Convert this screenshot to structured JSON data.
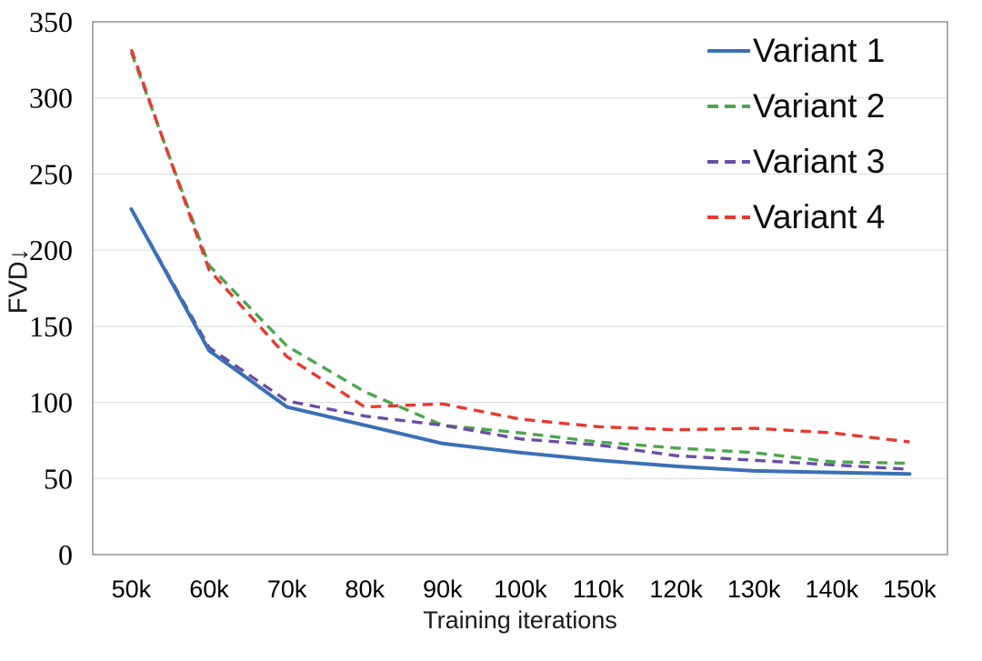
{
  "chart_data": {
    "type": "line",
    "title": "",
    "xlabel": "Training iterations",
    "ylabel": "FVD↓",
    "categories": [
      "50k",
      "60k",
      "70k",
      "80k",
      "90k",
      "100k",
      "110k",
      "120k",
      "130k",
      "140k",
      "150k"
    ],
    "y_tick_labels": [
      "0",
      "50",
      "100",
      "150",
      "200",
      "250",
      "300",
      "350"
    ],
    "ylim": [
      0,
      350
    ],
    "grid": "horizontal",
    "legend_position": "inside-top-right",
    "series": [
      {
        "name": "Variant 1",
        "color": "#3B70B6",
        "style": "solid",
        "values": [
          227,
          134,
          97,
          85,
          73,
          67,
          62,
          58,
          55,
          54,
          53
        ]
      },
      {
        "name": "Variant 2",
        "color": "#4EA64E",
        "style": "dashed",
        "values": [
          330,
          190,
          137,
          107,
          85,
          80,
          74,
          70,
          67,
          61,
          60
        ]
      },
      {
        "name": "Variant 3",
        "color": "#6C4EA4",
        "style": "dashed",
        "values": [
          227,
          136,
          101,
          91,
          85,
          76,
          72,
          65,
          62,
          59,
          56
        ]
      },
      {
        "name": "Variant 4",
        "color": "#E63A31",
        "style": "dashed",
        "values": [
          332,
          187,
          130,
          97,
          99,
          89,
          84,
          82,
          83,
          80,
          74
        ]
      }
    ]
  }
}
